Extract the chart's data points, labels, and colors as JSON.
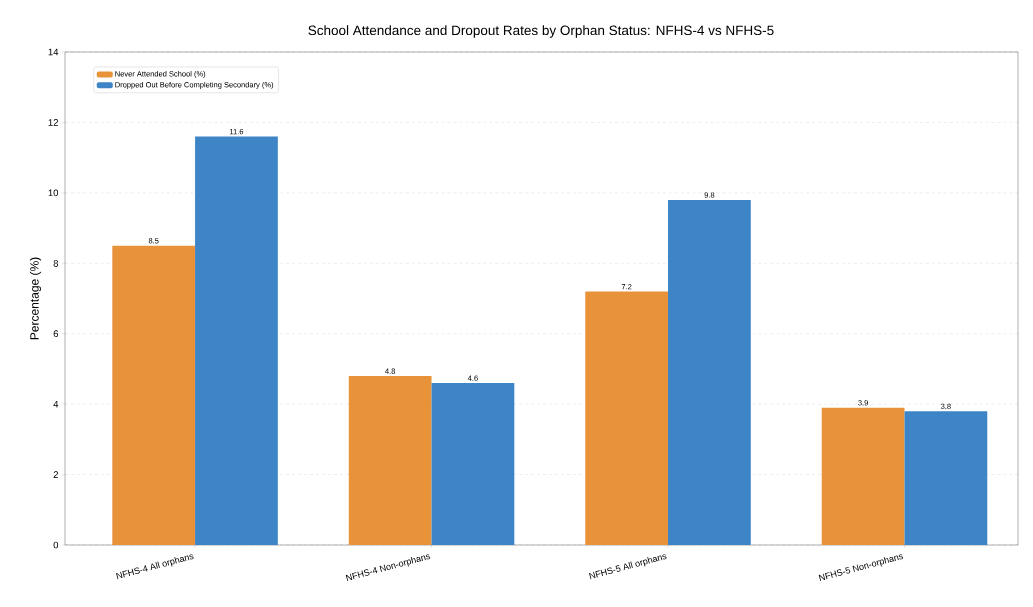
{
  "chart_data": {
    "type": "bar",
    "title": "School Attendance and Dropout Rates by Orphan Status: NFHS-4 vs NFHS-5",
    "ylabel": "Percentage (%)",
    "categories": [
      "NFHS-4 All orphans",
      "NFHS-4 Non-orphans",
      "NFHS-5 All orphans",
      "NFHS-5 Non-orphans"
    ],
    "series": [
      {
        "name": "Never Attended School (%)",
        "color": "#e8923a",
        "values": [
          8.5,
          4.8,
          7.2,
          3.9
        ]
      },
      {
        "name": "Dropped Out Before Completing Secondary (%)",
        "color": "#3d85c6",
        "values": [
          11.6,
          4.6,
          9.8,
          3.8
        ]
      }
    ],
    "ylim": [
      0,
      14
    ],
    "yticks": [
      0,
      2,
      4,
      6,
      8,
      10,
      12,
      14
    ],
    "grid": "y",
    "legend": "top left",
    "data_labels": true
  }
}
